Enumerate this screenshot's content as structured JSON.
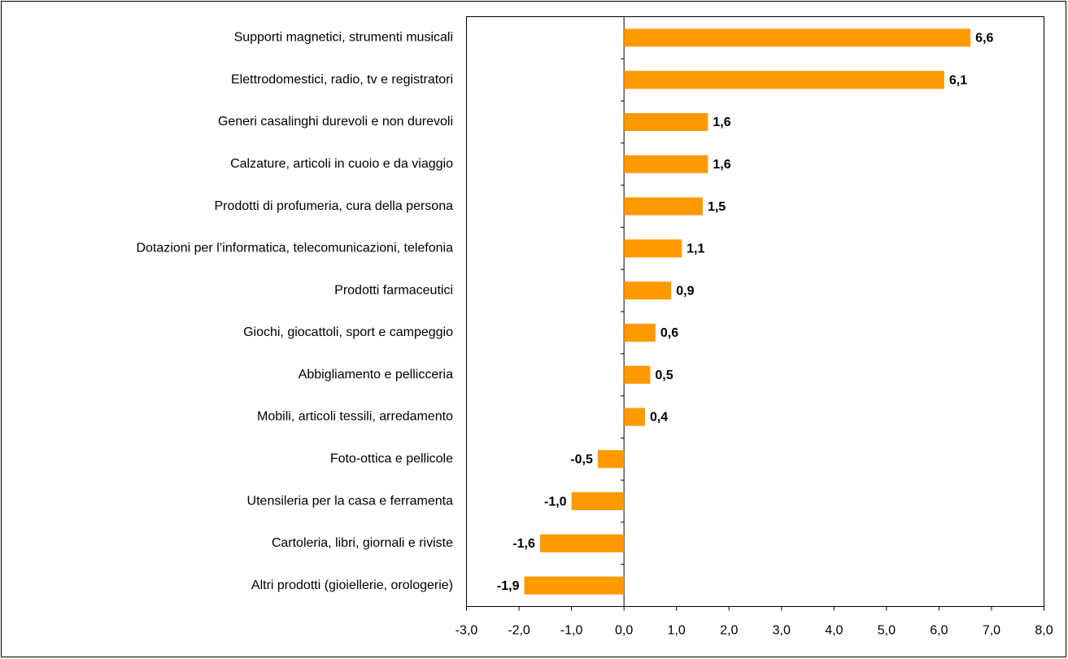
{
  "chart_data": {
    "type": "hbar",
    "categories": [
      "Supporti magnetici, strumenti musicali",
      "Elettrodomestici, radio, tv e registratori",
      "Generi casalinghi durevoli e non durevoli",
      "Calzature, articoli in cuoio e da viaggio",
      "Prodotti di profumeria, cura della persona",
      "Dotazioni per l’informatica, telecomunicazioni, telefonia",
      "Prodotti farmaceutici",
      "Giochi, giocattoli, sport e campeggio",
      "Abbigliamento e pellicceria",
      "Mobili, articoli tessili, arredamento",
      "Foto-ottica e pellicole",
      "Utensileria per la casa e ferramenta",
      "Cartoleria, libri, giornali e riviste",
      "Altri prodotti (gioiellerie, orologerie)"
    ],
    "values": [
      6.6,
      6.1,
      1.6,
      1.6,
      1.5,
      1.1,
      0.9,
      0.6,
      0.5,
      0.4,
      -0.5,
      -1.0,
      -1.6,
      -1.9
    ],
    "value_labels": [
      "6,6",
      "6,1",
      "1,6",
      "1,6",
      "1,5",
      "1,1",
      "0,9",
      "0,6",
      "0,5",
      "0,4",
      "-0,5",
      "-1,0",
      "-1,6",
      "-1,9"
    ],
    "color": "#ff9900",
    "xlim": [
      -3,
      8
    ],
    "xticks": [
      {
        "value": -3,
        "label": "-3,0"
      },
      {
        "value": -2,
        "label": "-2,0"
      },
      {
        "value": -1,
        "label": "-1,0"
      },
      {
        "value": 0,
        "label": "0,0"
      },
      {
        "value": 1,
        "label": "1,0"
      },
      {
        "value": 2,
        "label": "2,0"
      },
      {
        "value": 3,
        "label": "3,0"
      },
      {
        "value": 4,
        "label": "4,0"
      },
      {
        "value": 5,
        "label": "5,0"
      },
      {
        "value": 6,
        "label": "6,0"
      },
      {
        "value": 7,
        "label": "7,0"
      },
      {
        "value": 8,
        "label": "8,0"
      }
    ],
    "grid": false
  }
}
